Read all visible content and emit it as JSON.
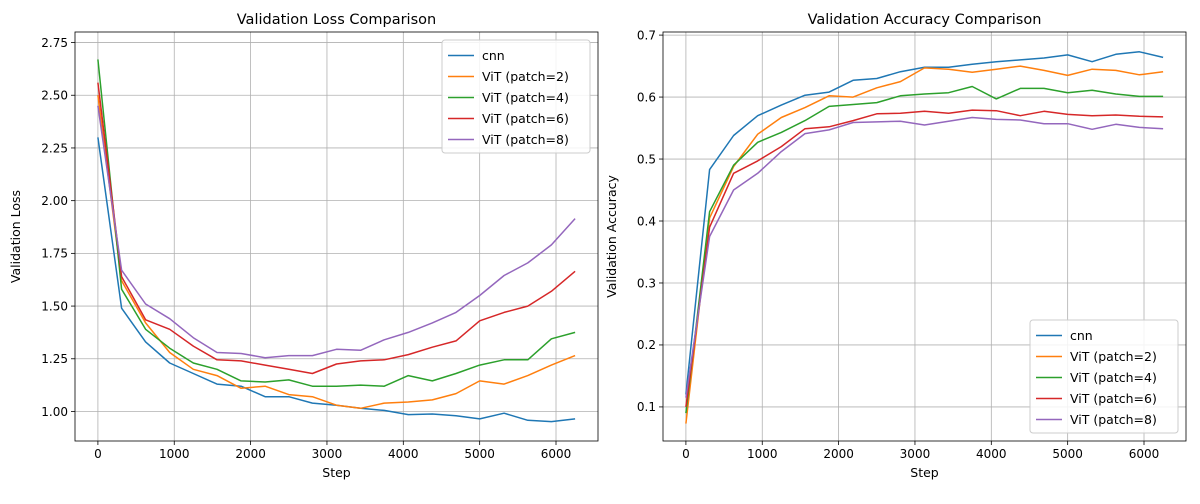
{
  "chart_data": [
    {
      "type": "line",
      "title": "Validation Loss Comparison",
      "xlabel": "Step",
      "ylabel": "Validation Loss",
      "xlim": [
        -300,
        6550
      ],
      "ylim": [
        0.86,
        2.8
      ],
      "xticks": [
        0,
        1000,
        2000,
        3000,
        4000,
        5000,
        6000
      ],
      "yticks": [
        1.0,
        1.25,
        1.5,
        1.75,
        2.0,
        2.25,
        2.5,
        2.75
      ],
      "yticks_labels": [
        "1.00",
        "1.25",
        "1.50",
        "1.75",
        "2.00",
        "2.25",
        "2.50",
        "2.75"
      ],
      "grid": true,
      "legend": "top-right",
      "x": [
        0,
        310,
        625,
        940,
        1250,
        1560,
        1875,
        2190,
        2500,
        2810,
        3125,
        3440,
        3750,
        4065,
        4380,
        4690,
        5000,
        5320,
        5630,
        5940,
        6250
      ],
      "series": [
        {
          "name": "cnn",
          "color": "#1f77b4",
          "values": [
            2.3,
            1.49,
            1.33,
            1.23,
            1.18,
            1.13,
            1.12,
            1.07,
            1.07,
            1.04,
            1.03,
            1.015,
            1.005,
            0.985,
            0.988,
            0.98,
            0.965,
            0.992,
            0.958,
            0.952,
            0.965
          ]
        },
        {
          "name": "ViT (patch=2)",
          "color": "#ff7f0e",
          "values": [
            2.5,
            1.62,
            1.42,
            1.28,
            1.2,
            1.17,
            1.11,
            1.12,
            1.08,
            1.07,
            1.03,
            1.015,
            1.04,
            1.045,
            1.055,
            1.085,
            1.145,
            1.13,
            1.17,
            1.22,
            1.265
          ]
        },
        {
          "name": "ViT (patch=4)",
          "color": "#2ca02c",
          "values": [
            2.67,
            1.58,
            1.39,
            1.3,
            1.23,
            1.2,
            1.145,
            1.14,
            1.15,
            1.12,
            1.12,
            1.125,
            1.12,
            1.17,
            1.145,
            1.18,
            1.22,
            1.245,
            1.245,
            1.345,
            1.375
          ]
        },
        {
          "name": "ViT (patch=6)",
          "color": "#d62728",
          "values": [
            2.56,
            1.64,
            1.435,
            1.39,
            1.31,
            1.245,
            1.24,
            1.22,
            1.2,
            1.18,
            1.225,
            1.24,
            1.245,
            1.27,
            1.305,
            1.335,
            1.43,
            1.47,
            1.5,
            1.57,
            1.665
          ]
        },
        {
          "name": "ViT (patch=8)",
          "color": "#9467bd",
          "values": [
            2.45,
            1.67,
            1.51,
            1.44,
            1.35,
            1.28,
            1.275,
            1.255,
            1.265,
            1.265,
            1.295,
            1.29,
            1.34,
            1.375,
            1.42,
            1.47,
            1.55,
            1.645,
            1.705,
            1.79,
            1.915
          ]
        }
      ]
    },
    {
      "type": "line",
      "title": "Validation Accuracy Comparison",
      "xlabel": "Step",
      "ylabel": "Validation Accuracy",
      "xlim": [
        -300,
        6550
      ],
      "ylim": [
        0.045,
        0.705
      ],
      "xticks": [
        0,
        1000,
        2000,
        3000,
        4000,
        5000,
        6000
      ],
      "yticks": [
        0.1,
        0.2,
        0.3,
        0.4,
        0.5,
        0.6,
        0.7
      ],
      "yticks_labels": [
        "0.1",
        "0.2",
        "0.3",
        "0.4",
        "0.5",
        "0.6",
        "0.7"
      ],
      "grid": true,
      "legend": "bottom-right",
      "x": [
        0,
        310,
        625,
        940,
        1250,
        1560,
        1875,
        2190,
        2500,
        2810,
        3125,
        3440,
        3750,
        4065,
        4380,
        4690,
        5000,
        5320,
        5630,
        5940,
        6250
      ],
      "series": [
        {
          "name": "cnn",
          "color": "#1f77b4",
          "values": [
            0.12,
            0.483,
            0.538,
            0.57,
            0.587,
            0.603,
            0.608,
            0.627,
            0.63,
            0.641,
            0.648,
            0.648,
            0.653,
            0.657,
            0.66,
            0.663,
            0.668,
            0.657,
            0.669,
            0.673,
            0.664
          ]
        },
        {
          "name": "ViT (patch=2)",
          "color": "#ff7f0e",
          "values": [
            0.073,
            0.405,
            0.488,
            0.54,
            0.567,
            0.583,
            0.602,
            0.6,
            0.615,
            0.625,
            0.647,
            0.645,
            0.64,
            0.645,
            0.65,
            0.643,
            0.635,
            0.645,
            0.643,
            0.636,
            0.641
          ]
        },
        {
          "name": "ViT (patch=4)",
          "color": "#2ca02c",
          "values": [
            0.09,
            0.415,
            0.49,
            0.527,
            0.543,
            0.562,
            0.585,
            0.588,
            0.591,
            0.602,
            0.605,
            0.607,
            0.617,
            0.597,
            0.614,
            0.614,
            0.607,
            0.611,
            0.605,
            0.601,
            0.601
          ]
        },
        {
          "name": "ViT (patch=6)",
          "color": "#d62728",
          "values": [
            0.1,
            0.39,
            0.477,
            0.497,
            0.52,
            0.549,
            0.552,
            0.562,
            0.573,
            0.574,
            0.577,
            0.574,
            0.579,
            0.578,
            0.57,
            0.577,
            0.572,
            0.57,
            0.571,
            0.569,
            0.568
          ]
        },
        {
          "name": "ViT (patch=8)",
          "color": "#9467bd",
          "values": [
            0.115,
            0.375,
            0.45,
            0.477,
            0.512,
            0.541,
            0.547,
            0.559,
            0.56,
            0.561,
            0.555,
            0.561,
            0.567,
            0.564,
            0.563,
            0.557,
            0.557,
            0.548,
            0.556,
            0.551,
            0.549
          ]
        }
      ]
    }
  ]
}
